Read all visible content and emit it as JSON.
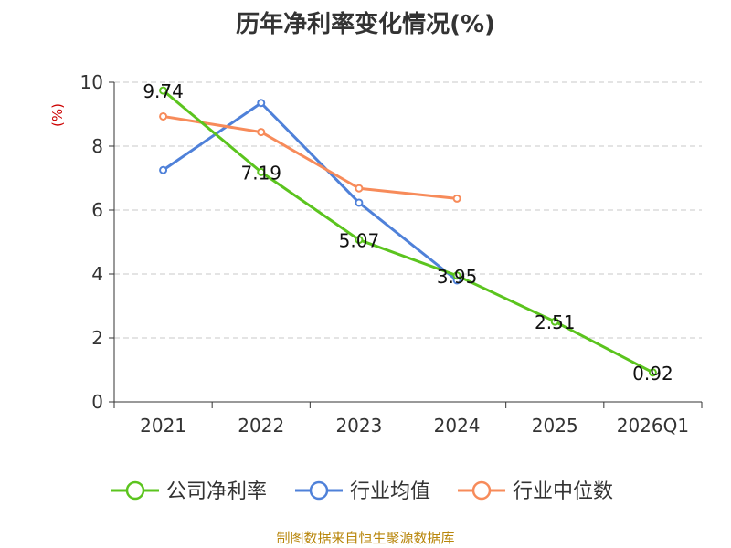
{
  "chart_data": {
    "type": "line",
    "title": "历年净利率变化情况(%)",
    "ylabel": "(%)",
    "xlabel": "",
    "categories": [
      "2021",
      "2022",
      "2023",
      "2024",
      "2025",
      "2026Q1"
    ],
    "ylim": [
      0,
      10
    ],
    "yticks": [
      0,
      2,
      4,
      6,
      8,
      10
    ],
    "grid": true,
    "legend_position": "bottom",
    "series": [
      {
        "name": "公司净利率",
        "color": "#5bc41e",
        "values": [
          9.74,
          7.19,
          5.07,
          3.95,
          2.51,
          0.92
        ],
        "show_labels": true
      },
      {
        "name": "行业均值",
        "color": "#4f81d9",
        "values": [
          7.25,
          9.35,
          6.23,
          3.8,
          null,
          null
        ],
        "show_labels": false
      },
      {
        "name": "行业中位数",
        "color": "#f78b5a",
        "values": [
          8.93,
          8.44,
          6.68,
          6.36,
          null,
          null
        ],
        "show_labels": false
      }
    ]
  },
  "source_note": "制图数据来自恒生聚源数据库"
}
